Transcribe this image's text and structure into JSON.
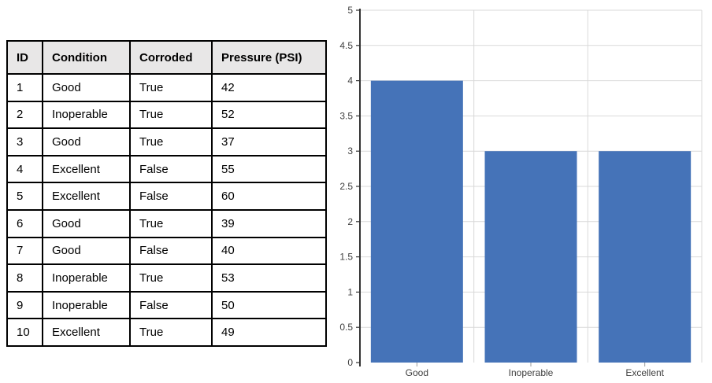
{
  "table": {
    "columns": [
      "ID",
      "Condition",
      "Corroded",
      "Pressure (PSI)"
    ],
    "rows": [
      [
        "1",
        "Good",
        "True",
        "42"
      ],
      [
        "2",
        "Inoperable",
        "True",
        "52"
      ],
      [
        "3",
        "Good",
        "True",
        "37"
      ],
      [
        "4",
        "Excellent",
        "False",
        "55"
      ],
      [
        "5",
        "Excellent",
        "False",
        "60"
      ],
      [
        "6",
        "Good",
        "True",
        "39"
      ],
      [
        "7",
        "Good",
        "False",
        "40"
      ],
      [
        "8",
        "Inoperable",
        "True",
        "53"
      ],
      [
        "9",
        "Inoperable",
        "False",
        "50"
      ],
      [
        "10",
        "Excellent",
        "True",
        "49"
      ]
    ],
    "header_bg": "#E8E7E7",
    "border_color": "#000000"
  },
  "chart_data": {
    "type": "bar",
    "categories": [
      "Good",
      "Inoperable",
      "Excellent"
    ],
    "values": [
      4,
      3,
      3
    ],
    "title": "",
    "xlabel": "",
    "ylabel": "",
    "ylim": [
      0,
      5
    ],
    "yticks": [
      "0",
      "0.5",
      "1",
      "1.5",
      "2",
      "2.5",
      "3",
      "3.5",
      "4",
      "4.5",
      "5"
    ],
    "grid": true,
    "legend": false,
    "bar_color": "#4573B8",
    "gridline_color": "#D9D9D9",
    "axis_color": "#333333",
    "label_color": "#404040"
  }
}
